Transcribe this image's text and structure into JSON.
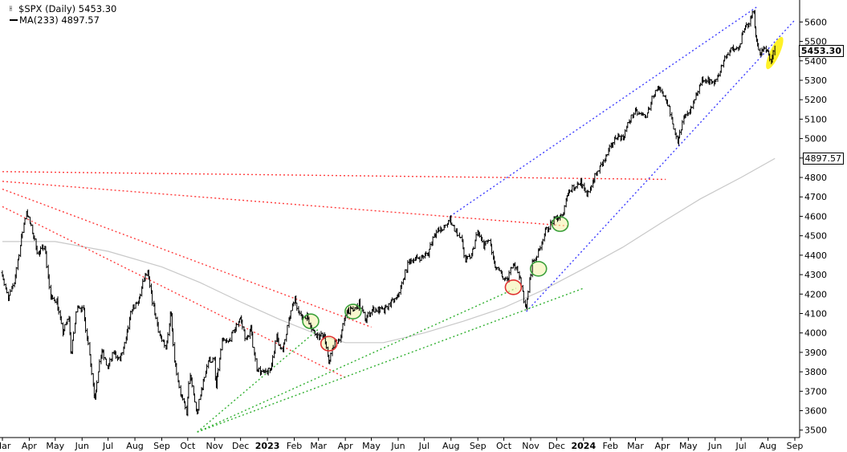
{
  "legend": {
    "ticker_line": "$SPX (Daily) 5453.30",
    "ma_line": "MA(233) 4897.57"
  },
  "tags": {
    "last_price": "5453.30",
    "ma_value": "4897.57"
  },
  "colors": {
    "price": "#000000",
    "ma": "#c8c8c8",
    "upper_channel": "#3c3cff",
    "resistance": "#ff3c3c",
    "support": "#30b030",
    "highlight_yellow": "#ffee00",
    "circle_green": "#3aa03a",
    "circle_red": "#e03030"
  },
  "chart_data": {
    "type": "line",
    "title": "$SPX (Daily)",
    "ylim": [
      3470,
      5680
    ],
    "y_ticks": [
      3500,
      3600,
      3700,
      3800,
      3900,
      4000,
      4100,
      4200,
      4300,
      4400,
      4500,
      4600,
      4700,
      4800,
      4900,
      5000,
      5100,
      5200,
      5300,
      5400,
      5500,
      5600
    ],
    "x_ticks": [
      {
        "label": "Mar",
        "date": "2022-03-01"
      },
      {
        "label": "Apr",
        "date": "2022-04-01"
      },
      {
        "label": "May",
        "date": "2022-05-01"
      },
      {
        "label": "Jun",
        "date": "2022-06-01"
      },
      {
        "label": "Jul",
        "date": "2022-07-01"
      },
      {
        "label": "Aug",
        "date": "2022-08-01"
      },
      {
        "label": "Sep",
        "date": "2022-09-01"
      },
      {
        "label": "Oct",
        "date": "2022-10-01"
      },
      {
        "label": "Nov",
        "date": "2022-11-01"
      },
      {
        "label": "Dec",
        "date": "2022-12-01"
      },
      {
        "label": "2023",
        "date": "2023-01-01",
        "year": true
      },
      {
        "label": "Feb",
        "date": "2023-02-01"
      },
      {
        "label": "Mar",
        "date": "2023-03-01"
      },
      {
        "label": "Apr",
        "date": "2023-04-01"
      },
      {
        "label": "May",
        "date": "2023-05-01"
      },
      {
        "label": "Jun",
        "date": "2023-06-01"
      },
      {
        "label": "Jul",
        "date": "2023-07-01"
      },
      {
        "label": "Aug",
        "date": "2023-08-01"
      },
      {
        "label": "Sep",
        "date": "2023-09-01"
      },
      {
        "label": "Oct",
        "date": "2023-10-01"
      },
      {
        "label": "Nov",
        "date": "2023-11-01"
      },
      {
        "label": "Dec",
        "date": "2023-12-01"
      },
      {
        "label": "2024",
        "date": "2024-01-01",
        "year": true
      },
      {
        "label": "Feb",
        "date": "2024-02-01"
      },
      {
        "label": "Mar",
        "date": "2024-03-01"
      },
      {
        "label": "Apr",
        "date": "2024-04-01"
      },
      {
        "label": "May",
        "date": "2024-05-01"
      },
      {
        "label": "Jun",
        "date": "2024-06-01"
      },
      {
        "label": "Jul",
        "date": "2024-07-01"
      },
      {
        "label": "Aug",
        "date": "2024-08-01"
      },
      {
        "label": "Sep",
        "date": "2024-09-01"
      }
    ],
    "x_range": [
      "2022-03-01",
      "2024-09-01"
    ],
    "series": [
      {
        "name": "$SPX (Daily)",
        "style": "ohlc",
        "points": [
          [
            "2022-03-01",
            4310
          ],
          [
            "2022-03-08",
            4170
          ],
          [
            "2022-03-15",
            4260
          ],
          [
            "2022-03-22",
            4450
          ],
          [
            "2022-03-29",
            4630
          ],
          [
            "2022-04-05",
            4520
          ],
          [
            "2022-04-12",
            4400
          ],
          [
            "2022-04-19",
            4460
          ],
          [
            "2022-04-26",
            4180
          ],
          [
            "2022-05-03",
            4170
          ],
          [
            "2022-05-10",
            4000
          ],
          [
            "2022-05-17",
            4080
          ],
          [
            "2022-05-20",
            3900
          ],
          [
            "2022-05-27",
            4150
          ],
          [
            "2022-06-03",
            4110
          ],
          [
            "2022-06-10",
            3900
          ],
          [
            "2022-06-16",
            3670
          ],
          [
            "2022-06-24",
            3910
          ],
          [
            "2022-07-01",
            3820
          ],
          [
            "2022-07-08",
            3900
          ],
          [
            "2022-07-15",
            3860
          ],
          [
            "2022-07-22",
            3960
          ],
          [
            "2022-07-29",
            4130
          ],
          [
            "2022-08-05",
            4150
          ],
          [
            "2022-08-12",
            4280
          ],
          [
            "2022-08-16",
            4305
          ],
          [
            "2022-08-23",
            4130
          ],
          [
            "2022-08-30",
            3990
          ],
          [
            "2022-09-06",
            3910
          ],
          [
            "2022-09-12",
            4110
          ],
          [
            "2022-09-16",
            3870
          ],
          [
            "2022-09-23",
            3690
          ],
          [
            "2022-09-30",
            3590
          ],
          [
            "2022-10-04",
            3790
          ],
          [
            "2022-10-12",
            3580
          ],
          [
            "2022-10-18",
            3720
          ],
          [
            "2022-10-25",
            3860
          ],
          [
            "2022-11-01",
            3860
          ],
          [
            "2022-11-03",
            3720
          ],
          [
            "2022-11-10",
            3960
          ],
          [
            "2022-11-17",
            3950
          ],
          [
            "2022-11-25",
            4020
          ],
          [
            "2022-12-01",
            4080
          ],
          [
            "2022-12-08",
            3960
          ],
          [
            "2022-12-13",
            4020
          ],
          [
            "2022-12-20",
            3820
          ],
          [
            "2022-12-28",
            3790
          ],
          [
            "2023-01-05",
            3810
          ],
          [
            "2023-01-12",
            3980
          ],
          [
            "2023-01-19",
            3900
          ],
          [
            "2023-01-26",
            4060
          ],
          [
            "2023-02-02",
            4180
          ],
          [
            "2023-02-09",
            4080
          ],
          [
            "2023-02-16",
            4090
          ],
          [
            "2023-02-23",
            4010
          ],
          [
            "2023-03-02",
            3980
          ],
          [
            "2023-03-08",
            3990
          ],
          [
            "2023-03-13",
            3850
          ],
          [
            "2023-03-20",
            3950
          ],
          [
            "2023-03-27",
            3980
          ],
          [
            "2023-04-03",
            4120
          ],
          [
            "2023-04-10",
            4110
          ],
          [
            "2023-04-17",
            4150
          ],
          [
            "2023-04-25",
            4070
          ],
          [
            "2023-05-02",
            4120
          ],
          [
            "2023-05-09",
            4120
          ],
          [
            "2023-05-16",
            4110
          ],
          [
            "2023-05-23",
            4150
          ],
          [
            "2023-05-31",
            4180
          ],
          [
            "2023-06-07",
            4270
          ],
          [
            "2023-06-14",
            4370
          ],
          [
            "2023-06-21",
            4380
          ],
          [
            "2023-06-28",
            4390
          ],
          [
            "2023-07-06",
            4410
          ],
          [
            "2023-07-13",
            4510
          ],
          [
            "2023-07-20",
            4530
          ],
          [
            "2023-07-27",
            4550
          ],
          [
            "2023-07-31",
            4590
          ],
          [
            "2023-08-07",
            4520
          ],
          [
            "2023-08-14",
            4470
          ],
          [
            "2023-08-18",
            4370
          ],
          [
            "2023-08-25",
            4400
          ],
          [
            "2023-09-01",
            4520
          ],
          [
            "2023-09-08",
            4450
          ],
          [
            "2023-09-15",
            4480
          ],
          [
            "2023-09-21",
            4340
          ],
          [
            "2023-09-28",
            4300
          ],
          [
            "2023-10-05",
            4260
          ],
          [
            "2023-10-12",
            4370
          ],
          [
            "2023-10-19",
            4300
          ],
          [
            "2023-10-27",
            4120
          ],
          [
            "2023-11-03",
            4360
          ],
          [
            "2023-11-10",
            4410
          ],
          [
            "2023-11-17",
            4510
          ],
          [
            "2023-11-24",
            4560
          ],
          [
            "2023-12-01",
            4590
          ],
          [
            "2023-12-08",
            4600
          ],
          [
            "2023-12-14",
            4720
          ],
          [
            "2023-12-21",
            4750
          ],
          [
            "2023-12-29",
            4780
          ],
          [
            "2024-01-05",
            4700
          ],
          [
            "2024-01-12",
            4780
          ],
          [
            "2024-01-19",
            4840
          ],
          [
            "2024-01-26",
            4890
          ],
          [
            "2024-02-02",
            4960
          ],
          [
            "2024-02-09",
            5020
          ],
          [
            "2024-02-16",
            5000
          ],
          [
            "2024-02-23",
            5090
          ],
          [
            "2024-03-01",
            5140
          ],
          [
            "2024-03-08",
            5120
          ],
          [
            "2024-03-15",
            5120
          ],
          [
            "2024-03-22",
            5230
          ],
          [
            "2024-03-28",
            5250
          ],
          [
            "2024-04-05",
            5200
          ],
          [
            "2024-04-12",
            5120
          ],
          [
            "2024-04-19",
            4970
          ],
          [
            "2024-04-26",
            5100
          ],
          [
            "2024-05-03",
            5130
          ],
          [
            "2024-05-10",
            5220
          ],
          [
            "2024-05-17",
            5300
          ],
          [
            "2024-05-24",
            5300
          ],
          [
            "2024-05-31",
            5280
          ],
          [
            "2024-06-07",
            5350
          ],
          [
            "2024-06-14",
            5430
          ],
          [
            "2024-06-21",
            5460
          ],
          [
            "2024-06-28",
            5460
          ],
          [
            "2024-07-05",
            5560
          ],
          [
            "2024-07-12",
            5610
          ],
          [
            "2024-07-16",
            5660
          ],
          [
            "2024-07-19",
            5510
          ],
          [
            "2024-07-24",
            5430
          ],
          [
            "2024-07-26",
            5460
          ],
          [
            "2024-08-01",
            5446
          ],
          [
            "2024-08-05",
            5400
          ],
          [
            "2024-08-09",
            5453.3
          ]
        ]
      },
      {
        "name": "MA(233)",
        "style": "line",
        "points": [
          [
            "2022-03-01",
            4470
          ],
          [
            "2022-05-01",
            4470
          ],
          [
            "2022-07-01",
            4420
          ],
          [
            "2022-09-01",
            4340
          ],
          [
            "2022-10-15",
            4260
          ],
          [
            "2022-12-01",
            4160
          ],
          [
            "2023-01-15",
            4070
          ],
          [
            "2023-03-01",
            3990
          ],
          [
            "2023-04-01",
            3950
          ],
          [
            "2023-05-15",
            3950
          ],
          [
            "2023-07-01",
            4000
          ],
          [
            "2023-08-15",
            4060
          ],
          [
            "2023-10-01",
            4130
          ],
          [
            "2023-11-15",
            4220
          ],
          [
            "2024-01-01",
            4330
          ],
          [
            "2024-02-15",
            4440
          ],
          [
            "2024-04-01",
            4570
          ],
          [
            "2024-05-15",
            4690
          ],
          [
            "2024-07-01",
            4800
          ],
          [
            "2024-08-09",
            4897.57
          ]
        ]
      }
    ],
    "trendlines": [
      {
        "kind": "upper_channel",
        "dash": true,
        "from": [
          "2023-07-31",
          4600
        ],
        "to": [
          "2024-07-20",
          5680
        ]
      },
      {
        "kind": "upper_channel",
        "dash": true,
        "from": [
          "2023-10-27",
          4110
        ],
        "to": [
          "2024-09-01",
          5610
        ]
      },
      {
        "kind": "resistance",
        "dash": true,
        "from": [
          "2022-03-01",
          4830
        ],
        "to": [
          "2024-04-05",
          4790
        ]
      },
      {
        "kind": "resistance",
        "dash": true,
        "from": [
          "2022-03-01",
          4780
        ],
        "to": [
          "2023-12-15",
          4550
        ]
      },
      {
        "kind": "resistance",
        "dash": true,
        "from": [
          "2022-03-01",
          4740
        ],
        "to": [
          "2023-05-01",
          4030
        ]
      },
      {
        "kind": "resistance",
        "dash": true,
        "from": [
          "2022-03-01",
          4650
        ],
        "to": [
          "2023-04-01",
          3770
        ]
      },
      {
        "kind": "support",
        "dash": true,
        "from": [
          "2022-10-12",
          3490
        ],
        "to": [
          "2023-03-01",
          4020
        ]
      },
      {
        "kind": "support",
        "dash": true,
        "from": [
          "2022-10-12",
          3490
        ],
        "to": [
          "2023-10-15",
          4230
        ]
      },
      {
        "kind": "support",
        "dash": true,
        "from": [
          "2022-10-12",
          3490
        ],
        "to": [
          "2024-01-01",
          4230
        ]
      }
    ],
    "markers": [
      {
        "kind": "circle",
        "color": "green",
        "date": "2023-02-20",
        "value": 4060
      },
      {
        "kind": "circle",
        "color": "red",
        "date": "2023-03-13",
        "value": 3945
      },
      {
        "kind": "circle",
        "color": "green",
        "date": "2023-04-10",
        "value": 4110
      },
      {
        "kind": "circle",
        "color": "red",
        "date": "2023-10-12",
        "value": 4235
      },
      {
        "kind": "circle",
        "color": "green",
        "date": "2023-11-10",
        "value": 4330
      },
      {
        "kind": "circle",
        "color": "green",
        "date": "2023-12-05",
        "value": 4560
      },
      {
        "kind": "highlight",
        "color": "yellow",
        "date": "2024-08-05",
        "value": 5440
      }
    ]
  }
}
